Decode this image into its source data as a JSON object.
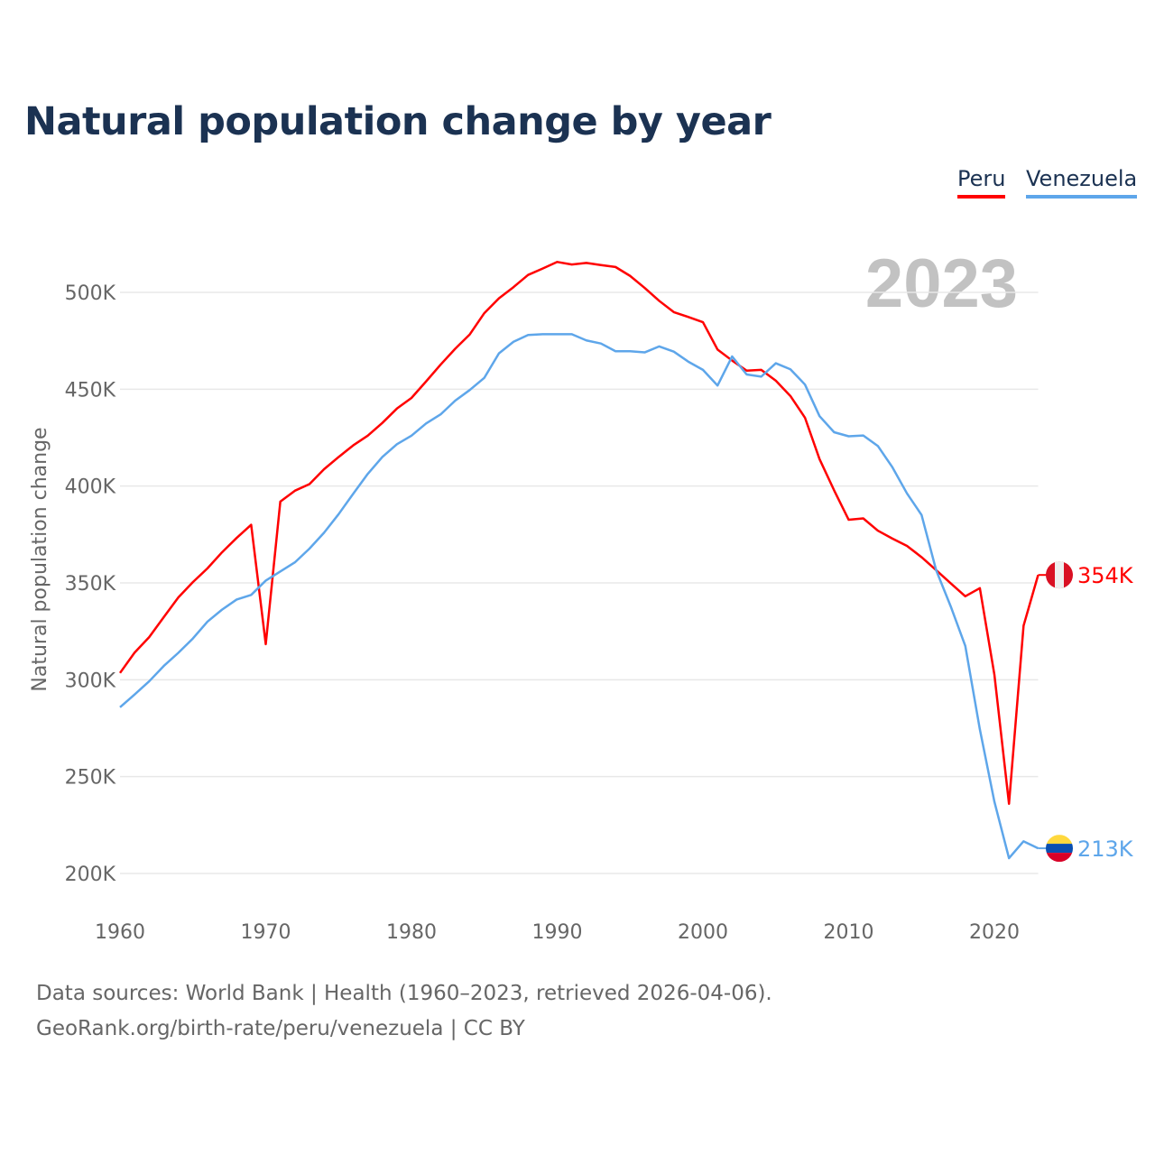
{
  "title": "Natural population change by year",
  "legend": [
    {
      "label": "Peru",
      "color": "#ff0000"
    },
    {
      "label": "Venezuela",
      "color": "#5ea6ea"
    }
  ],
  "year_watermark": "2023",
  "footer": {
    "line1": "Data sources: World Bank | Health (1960–2023, retrieved 2026-04-06).",
    "line2": "GeoRank.org/birth-rate/peru/venezuela | CC BY"
  },
  "chart_data": {
    "type": "line",
    "title": "Natural population change by year",
    "xlabel": "",
    "ylabel": "Natural population change",
    "xlim": [
      1960,
      2023
    ],
    "ylim": [
      200000,
      500000
    ],
    "x_ticks": [
      1960,
      1970,
      1980,
      1990,
      2000,
      2010,
      2020
    ],
    "x_tick_labels": [
      "1960",
      "1970",
      "1980",
      "1990",
      "2000",
      "2010",
      "2020"
    ],
    "y_ticks": [
      200000,
      250000,
      300000,
      350000,
      400000,
      450000,
      500000
    ],
    "y_tick_labels": [
      "200K",
      "250K",
      "300K",
      "350K",
      "400K",
      "450K",
      "500K"
    ],
    "grid": true,
    "legend_position": "top-right",
    "x_start": 1960,
    "series": [
      {
        "name": "Peru",
        "color": "#ff0000",
        "end_label": "354K",
        "values": [
          303.5,
          314,
          322,
          332.3,
          342.5,
          350.4,
          357.5,
          365.8,
          373.2,
          380,
          318.4,
          392,
          397.6,
          401,
          408.7,
          415,
          421,
          426,
          432.6,
          440,
          445.5,
          454,
          462.7,
          470.9,
          478.3,
          489.3,
          496.9,
          502.7,
          509,
          512.3,
          515.7,
          514.4,
          515.2,
          514.1,
          513.1,
          508.5,
          502.3,
          495.6,
          489.8,
          487.3,
          484.6,
          470.5,
          464.8,
          459.6,
          460,
          454.4,
          446.5,
          435.3,
          413.9,
          397.8,
          382.6,
          383.3,
          377,
          372.9,
          369.1,
          363.3,
          356.6,
          349.8,
          343.1,
          347.3,
          302.5,
          236,
          327.9,
          354.1
        ]
      },
      {
        "name": "Venezuela",
        "color": "#5ea6ea",
        "end_label": "213K",
        "values": [
          285.8,
          292.4,
          299.2,
          307.1,
          313.9,
          321.3,
          330,
          336.2,
          341.4,
          343.8,
          351.2,
          355.9,
          360.6,
          367.7,
          375.9,
          385.5,
          396,
          406.3,
          415,
          421.6,
          426,
          432.3,
          437,
          444.1,
          449.6,
          455.9,
          468.5,
          474.5,
          478,
          478.4,
          478.4,
          478.4,
          475.2,
          473.6,
          469.6,
          469.6,
          469,
          472.1,
          469.4,
          464.2,
          460,
          451.9,
          466.9,
          457.6,
          456.5,
          463.4,
          460.3,
          452.4,
          436.1,
          427.8,
          425.7,
          426.1,
          420.7,
          409.7,
          396.2,
          385.1,
          356.6,
          337.9,
          317.5,
          274.4,
          237,
          207.9,
          216.6,
          213
        ]
      }
    ],
    "value_unit": "thousands"
  }
}
